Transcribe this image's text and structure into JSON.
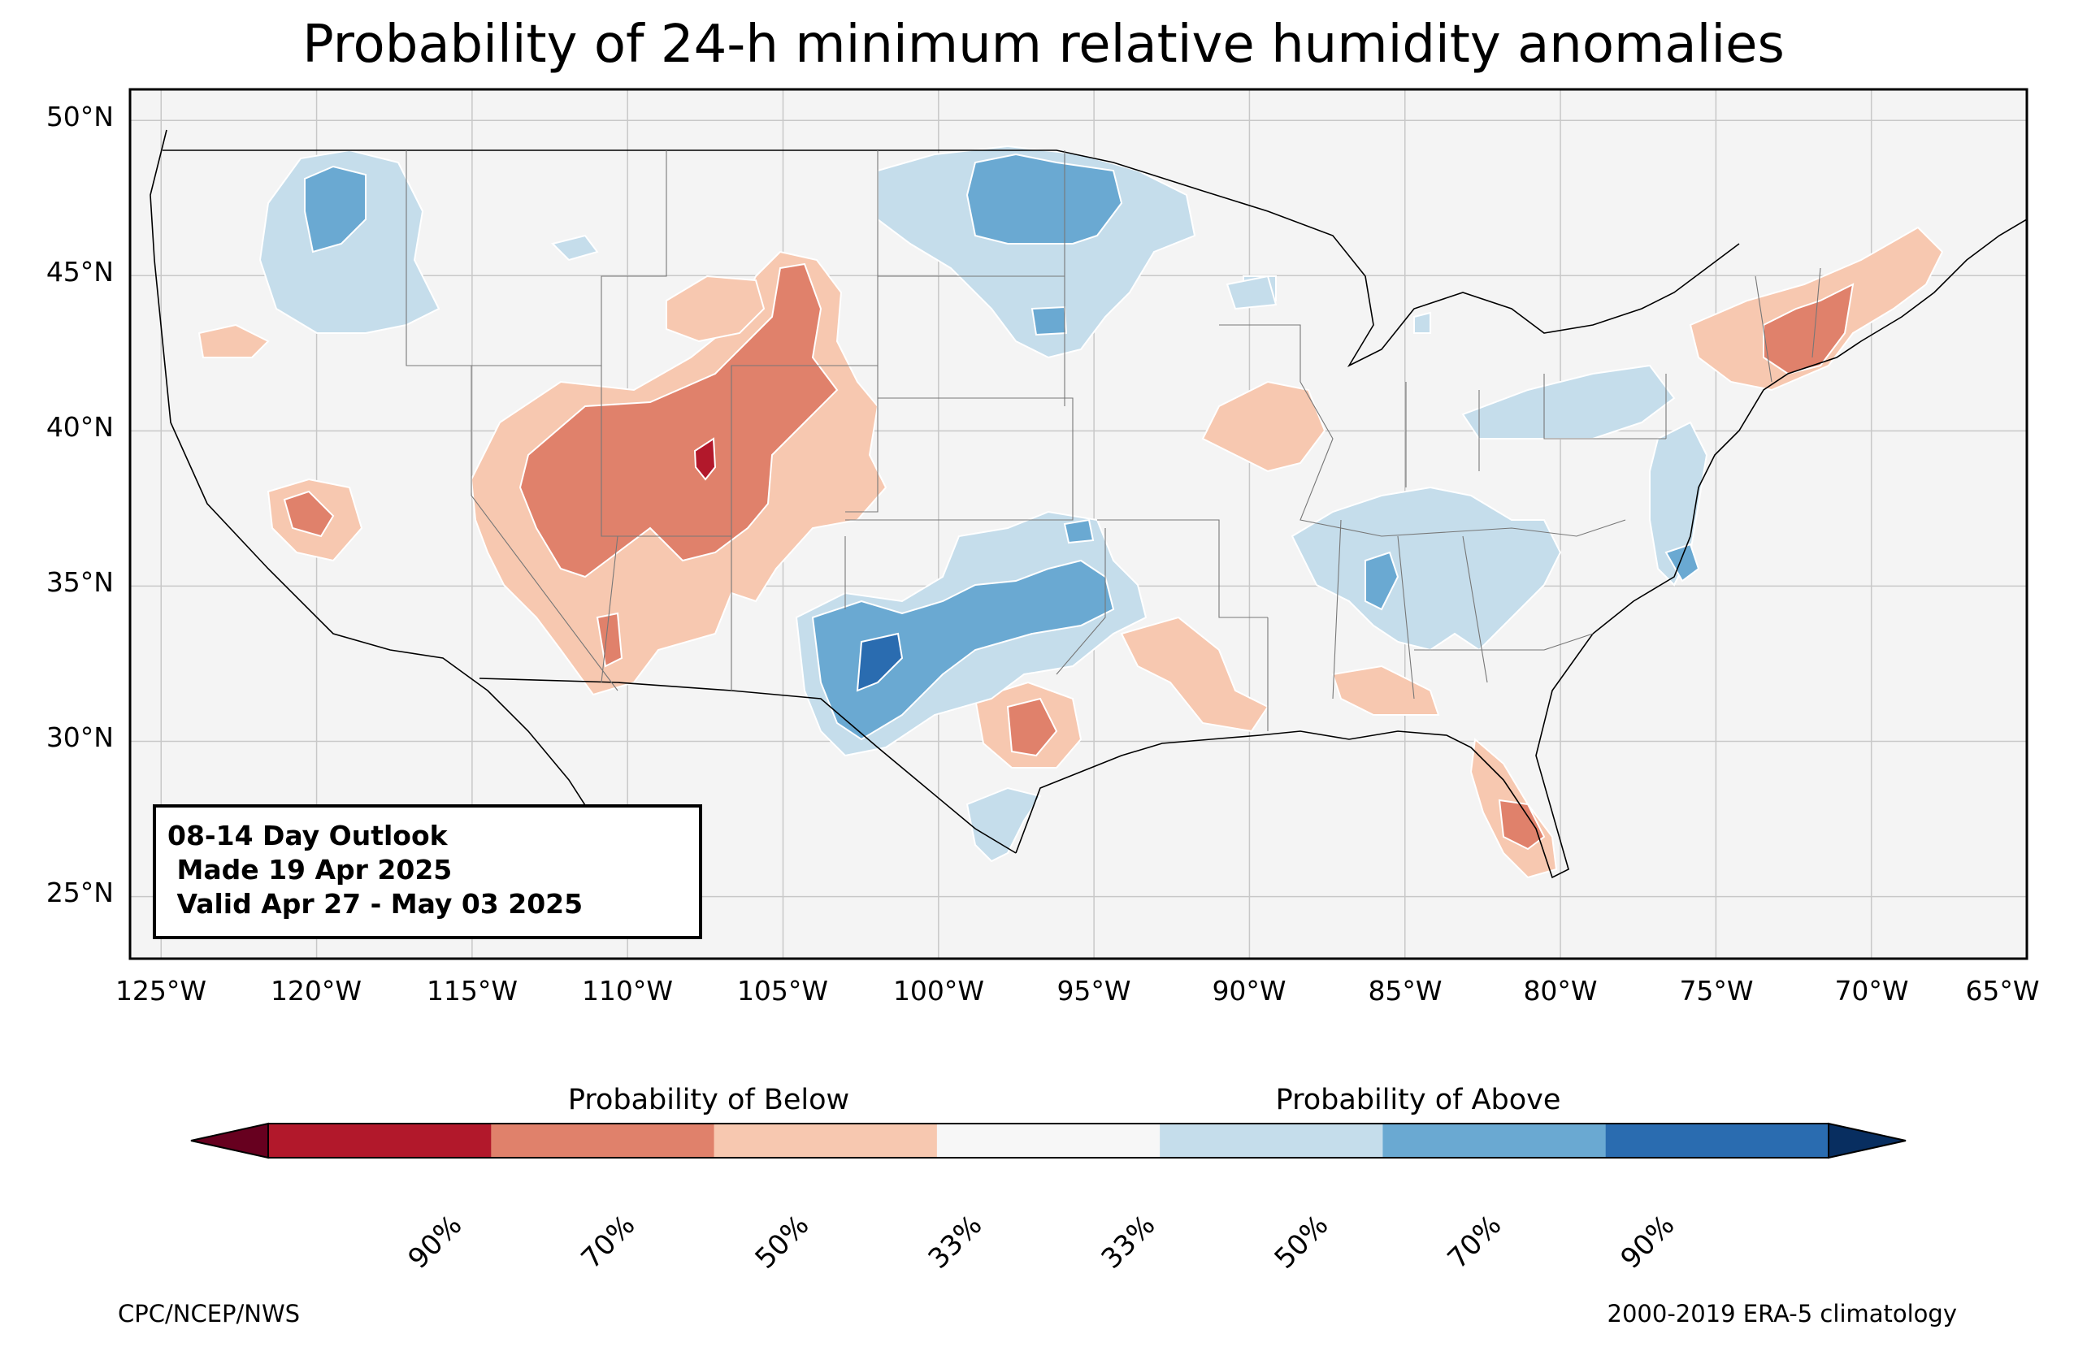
{
  "title": "Probability of 24-h minimum relative humidity anomalies",
  "map": {
    "projection": "equirectangular",
    "lon_range": [
      -126,
      -65
    ],
    "lat_range": [
      23,
      51
    ],
    "background": "#f4f4f4",
    "latitude_labels": [
      "50°N",
      "45°N",
      "40°N",
      "35°N",
      "30°N",
      "25°N"
    ],
    "longitude_labels": [
      "125°W",
      "120°W",
      "115°W",
      "110°W",
      "105°W",
      "100°W",
      "95°W",
      "90°W",
      "85°W",
      "80°W",
      "75°W",
      "70°W",
      "65°W"
    ],
    "legend_category_colors": {
      "below_90": "#67001f",
      "below_70": "#b2182b",
      "below_50": "#e0816b",
      "below_33": "#f7c8b0",
      "near_normal": "#f7f7f7",
      "above_33": "#c5ddeb",
      "above_50": "#6aa9d2",
      "above_70": "#2a6cb0",
      "above_90": "#082e60"
    }
  },
  "info_box": {
    "line1": "08-14 Day Outlook",
    "line2": " Made 19 Apr 2025",
    "line3": " Valid Apr 27 - May 03 2025"
  },
  "colorbar": {
    "below_title": "Probability of Below",
    "above_title": "Probability of Above",
    "segments": [
      "#67001f",
      "#b2182b",
      "#e0816b",
      "#f7c8b0",
      "#f7f7f7",
      "#c5ddeb",
      "#6aa9d2",
      "#2a6cb0",
      "#082e60"
    ],
    "ticks": [
      "90%",
      "70%",
      "50%",
      "33%",
      "33%",
      "50%",
      "70%",
      "90%"
    ]
  },
  "footer": {
    "left": "CPC/NCEP/NWS",
    "right": "2000-2019 ERA-5 climatology"
  }
}
